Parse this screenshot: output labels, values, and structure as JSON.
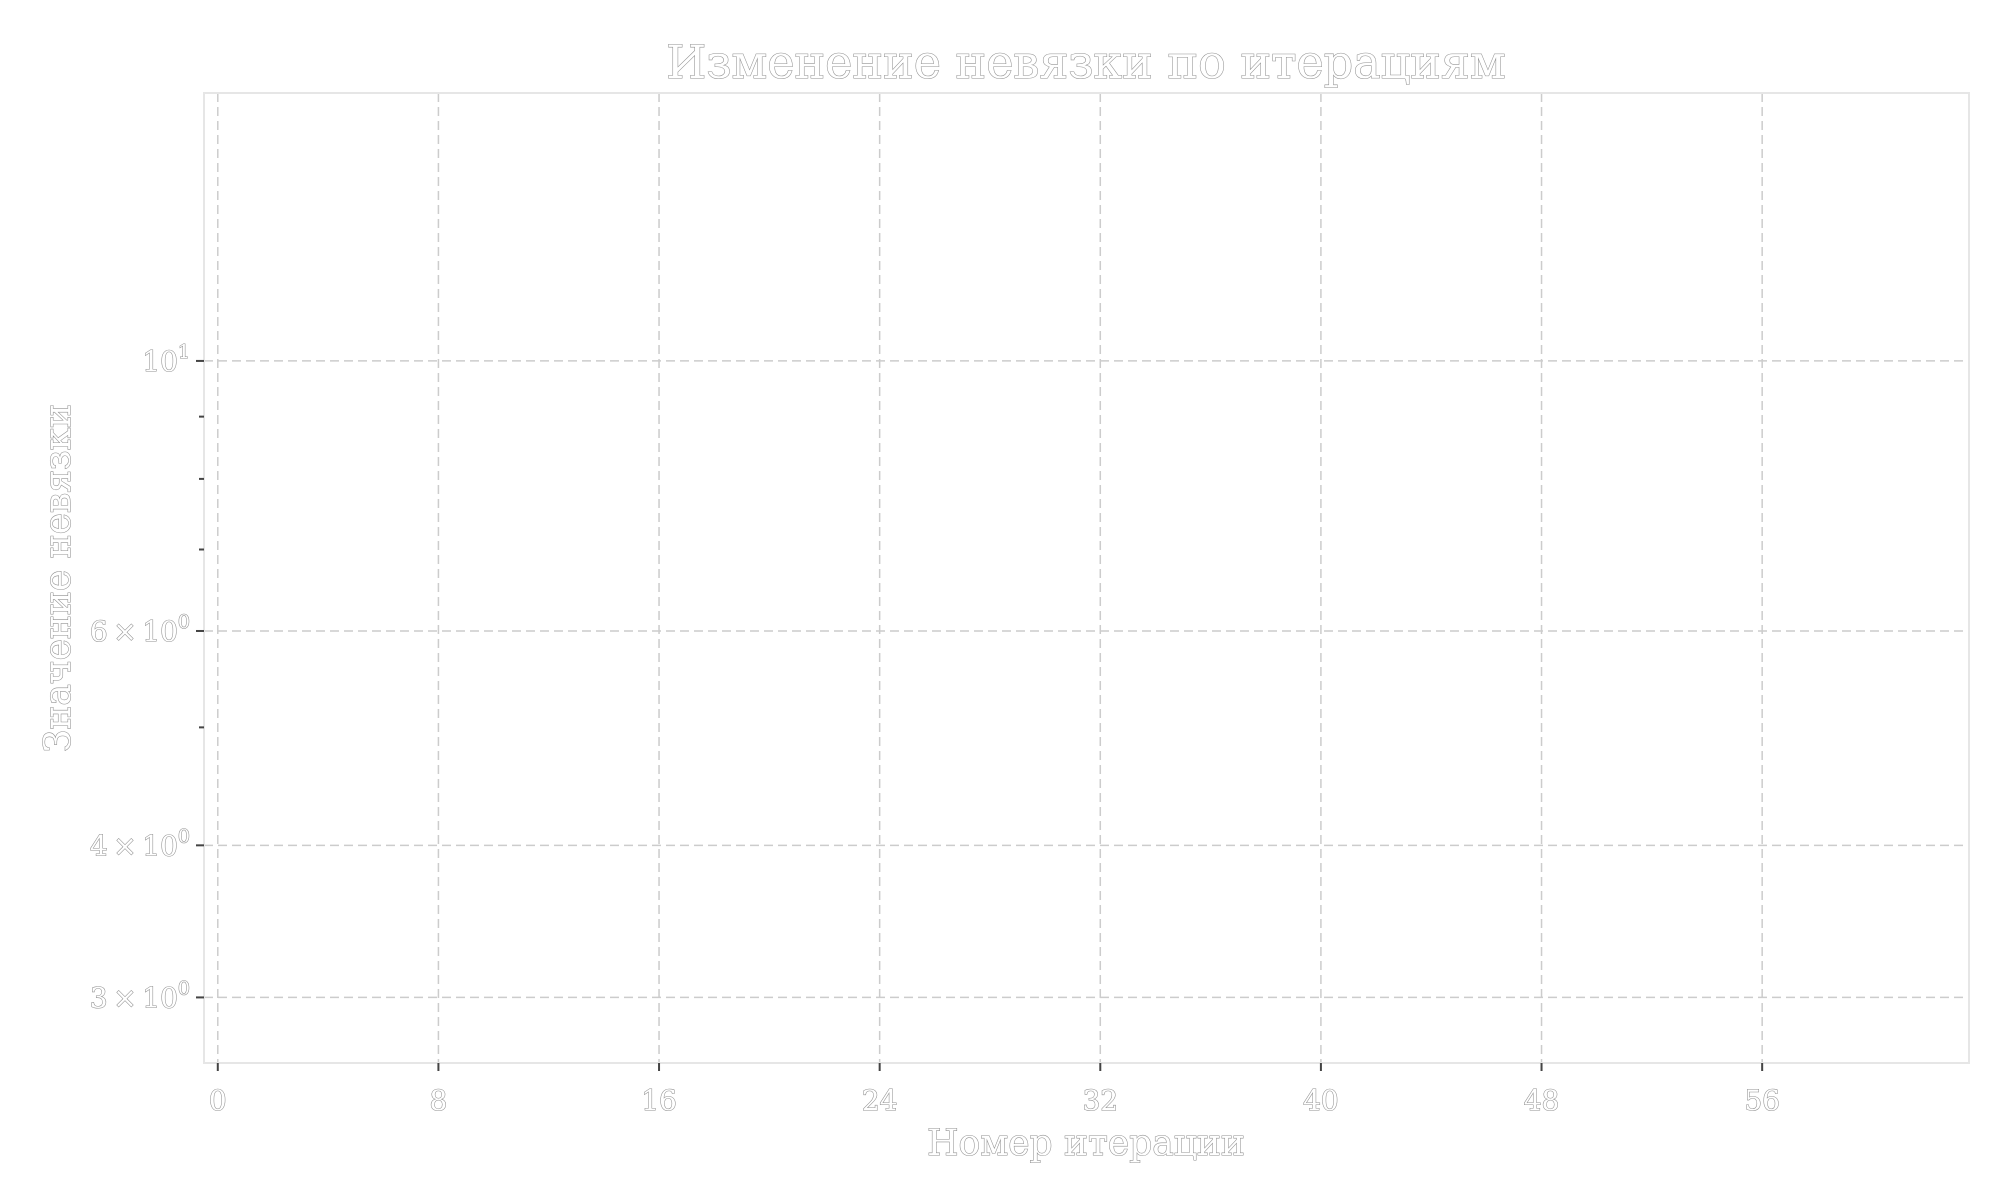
{
  "chart_data": {
    "type": "line",
    "title": "Изменение невязки по итерациям",
    "xlabel": "Номер итерации",
    "ylabel": "Значение невязки",
    "x_ticks": [
      0,
      8,
      16,
      24,
      32,
      40,
      48,
      56
    ],
    "xlim": [
      -0.5,
      63.5
    ],
    "yscale": "log",
    "ylim": [
      2.65,
      16.6
    ],
    "y_ticks": [
      {
        "value": 10,
        "mantissa": "",
        "power": "1"
      },
      {
        "value": 6,
        "mantissa": "6",
        "power": "0"
      },
      {
        "value": 4,
        "mantissa": "4",
        "power": "0"
      },
      {
        "value": 3,
        "mantissa": "3",
        "power": "0"
      }
    ],
    "y_minor_ticks": [
      5,
      7,
      8,
      9
    ],
    "grid": true,
    "series": []
  }
}
